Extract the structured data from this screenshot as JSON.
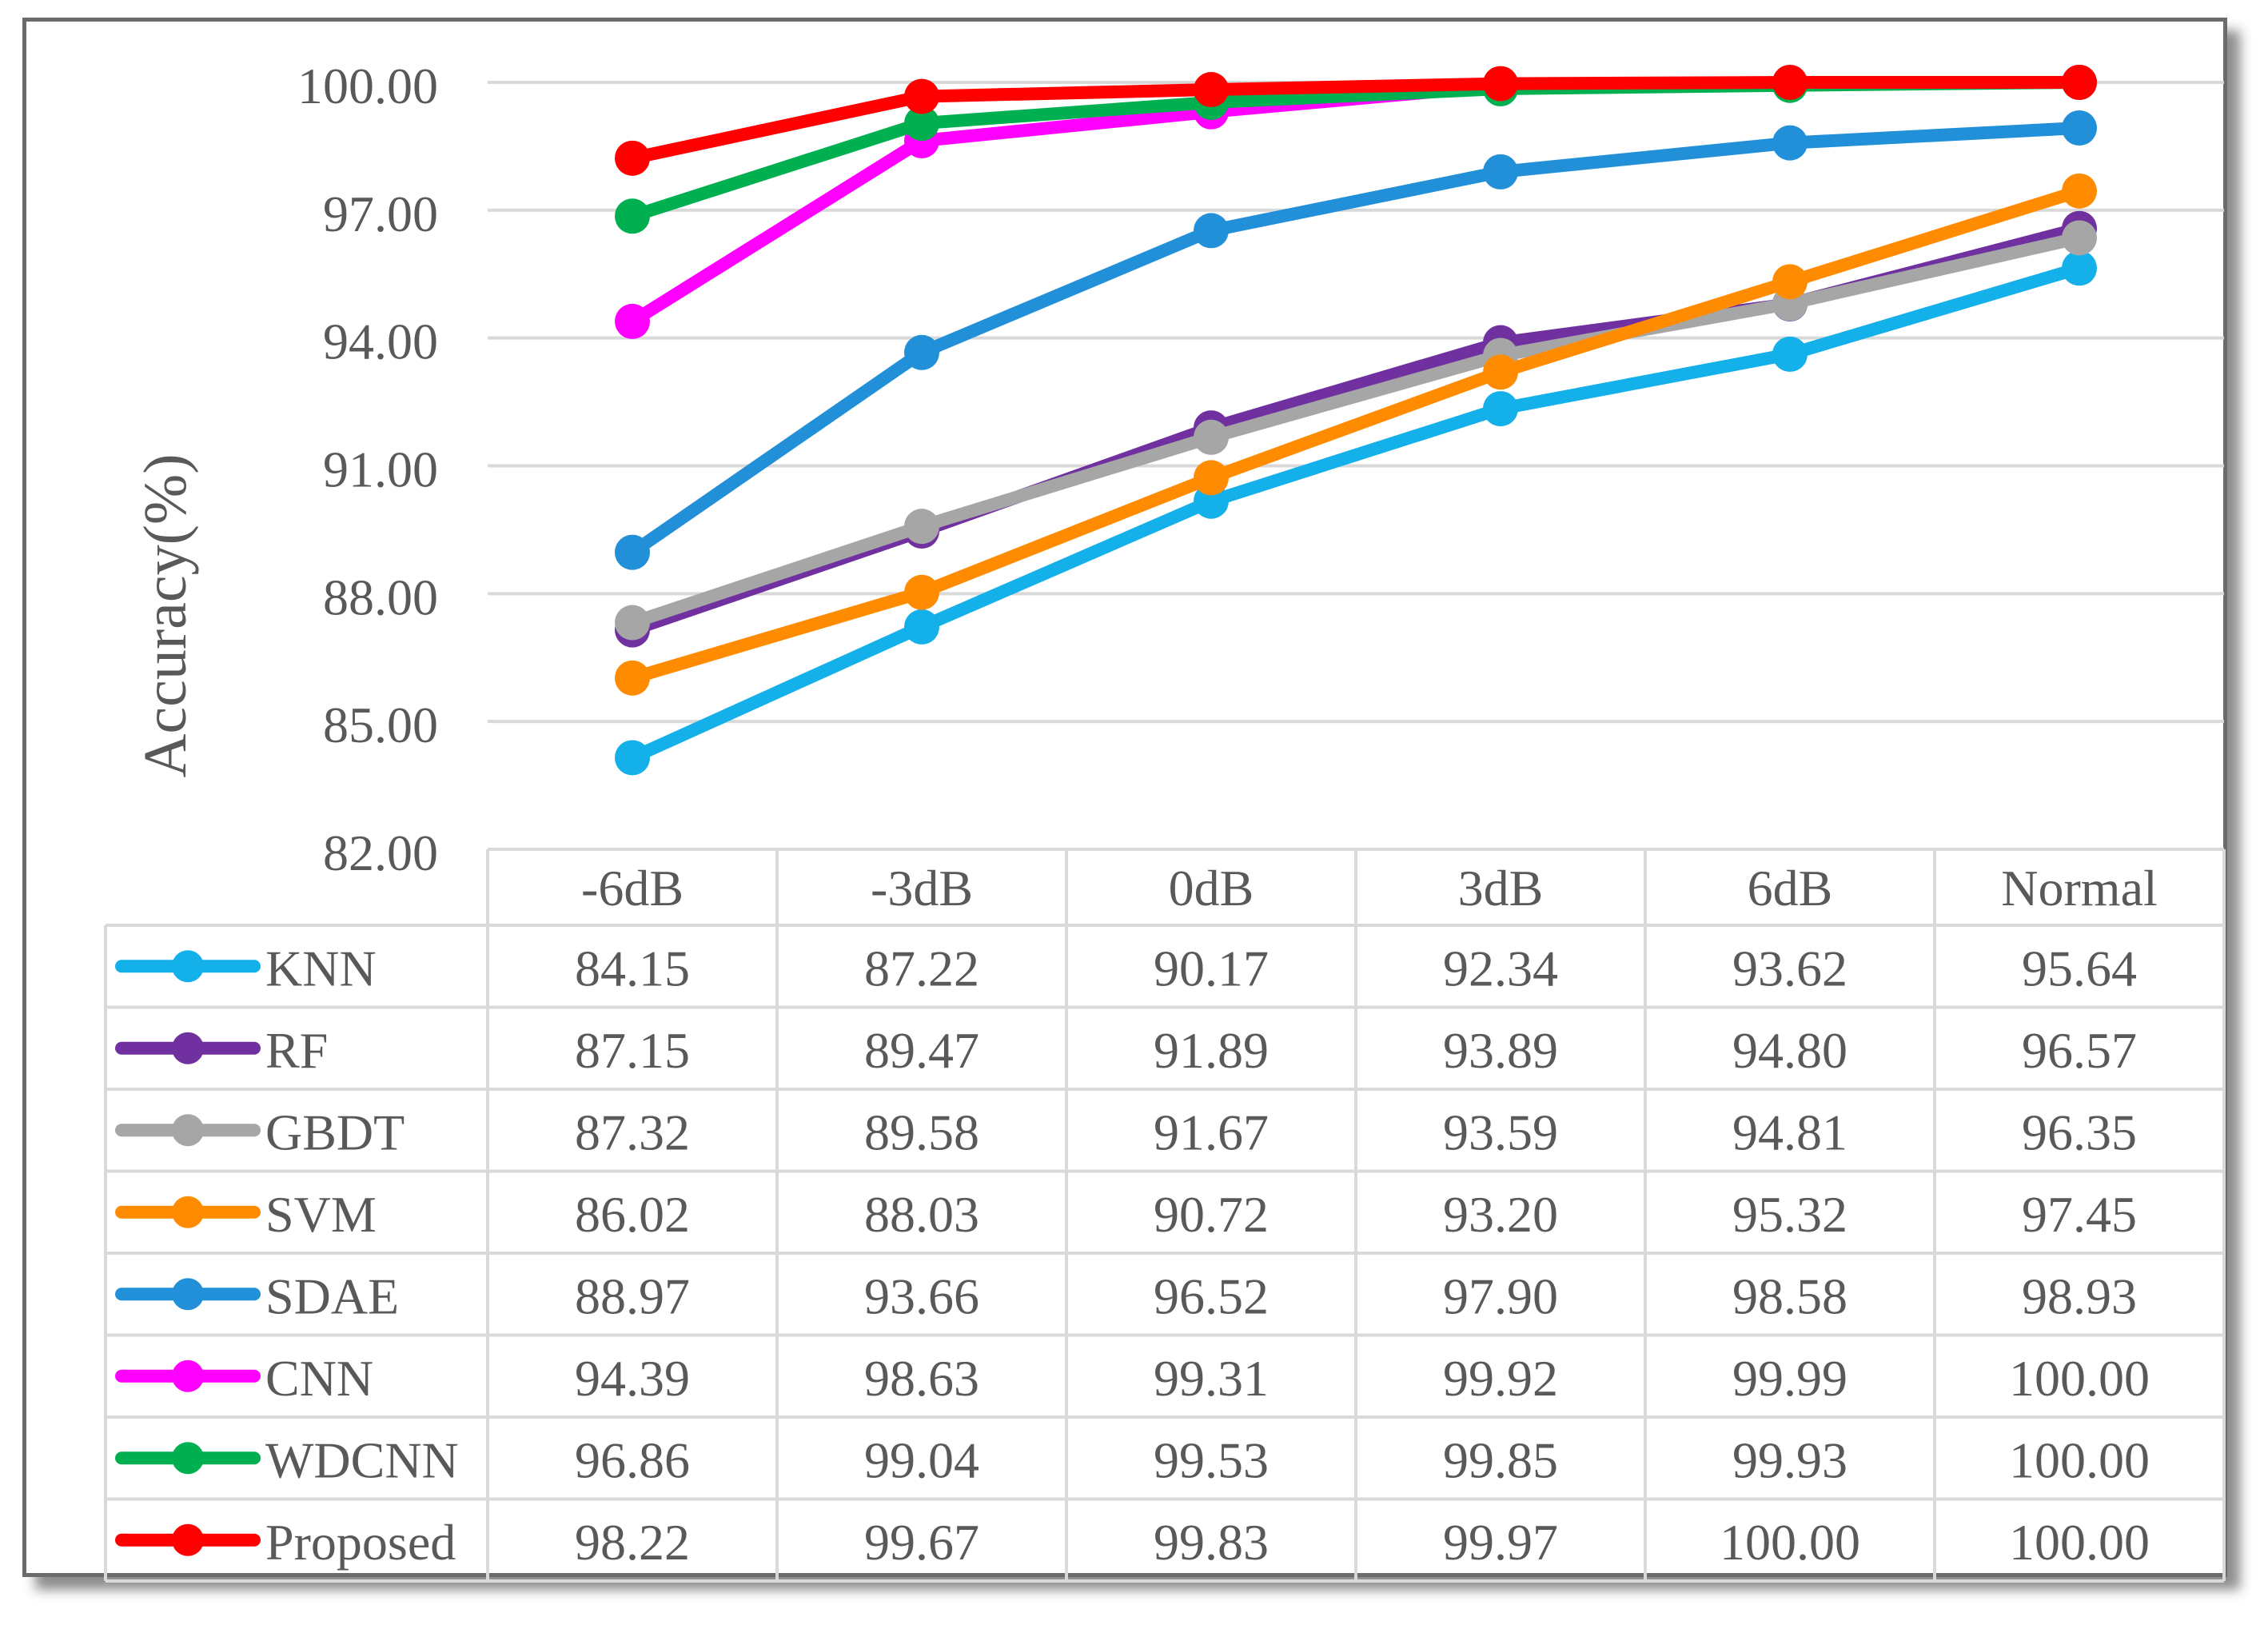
{
  "chart_data": {
    "type": "line",
    "title": "",
    "ylabel": "Accuracy(%)",
    "xlabel": "",
    "categories": [
      "-6dB",
      "-3dB",
      "0dB",
      "3dB",
      "6dB",
      "Normal"
    ],
    "ylim": [
      82,
      100
    ],
    "yticks": [
      "82.00",
      "85.00",
      "88.00",
      "91.00",
      "94.00",
      "97.00",
      "100.00"
    ],
    "grid": true,
    "legend": "data-table",
    "series": [
      {
        "name": "KNN",
        "color": "#13b0ea",
        "values": [
          "84.15",
          "87.22",
          "90.17",
          "92.34",
          "93.62",
          "95.64"
        ]
      },
      {
        "name": "RF",
        "color": "#7030a0",
        "values": [
          "87.15",
          "89.47",
          "91.89",
          "93.89",
          "94.80",
          "96.57"
        ]
      },
      {
        "name": "GBDT",
        "color": "#a6a6a6",
        "values": [
          "87.32",
          "89.58",
          "91.67",
          "93.59",
          "94.81",
          "96.35"
        ]
      },
      {
        "name": "SVM",
        "color": "#ff8c00",
        "values": [
          "86.02",
          "88.03",
          "90.72",
          "93.20",
          "95.32",
          "97.45"
        ]
      },
      {
        "name": "SDAE",
        "color": "#2290d8",
        "values": [
          "88.97",
          "93.66",
          "96.52",
          "97.90",
          "98.58",
          "98.93"
        ]
      },
      {
        "name": "CNN",
        "color": "#ff00ff",
        "values": [
          "94.39",
          "98.63",
          "99.31",
          "99.92",
          "99.99",
          "100.00"
        ]
      },
      {
        "name": "WDCNN",
        "color": "#00b050",
        "values": [
          "96.86",
          "99.04",
          "99.53",
          "99.85",
          "99.93",
          "100.00"
        ]
      },
      {
        "name": "Proposed",
        "color": "#ff0000",
        "values": [
          "98.22",
          "99.67",
          "99.83",
          "99.97",
          "100.00",
          "100.00"
        ]
      }
    ]
  }
}
